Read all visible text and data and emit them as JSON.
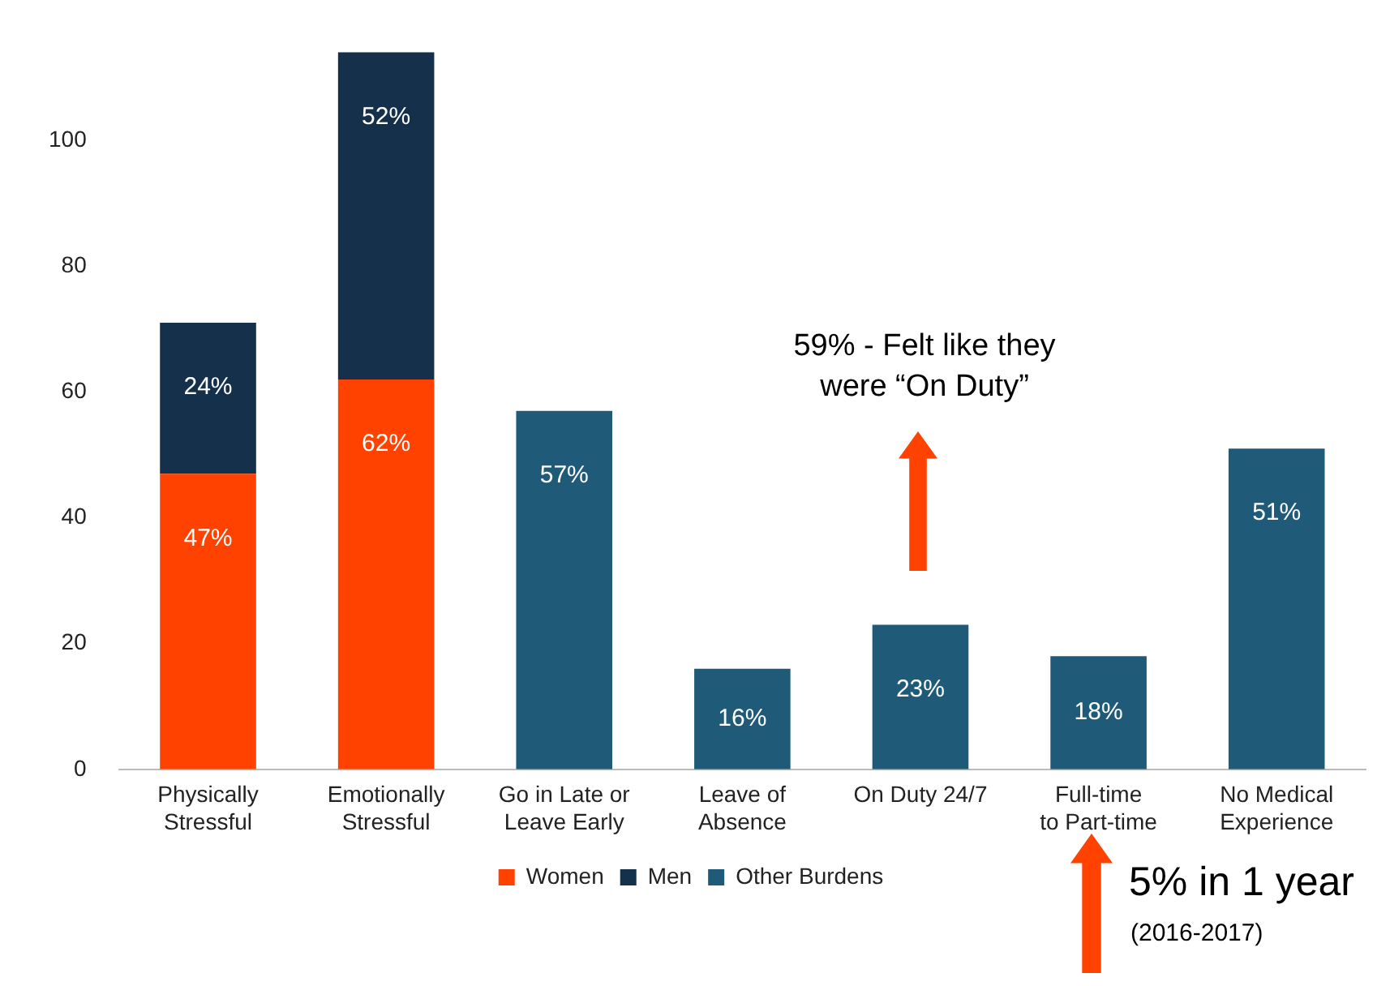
{
  "chart_data": {
    "type": "bar",
    "stacked": true,
    "categories": [
      "Physically\nStressful",
      "Emotionally\nStressful",
      "Go in Late or\nLeave Early",
      "Leave of\nAbsence",
      "On Duty 24/7",
      "Full-time\nto Part-time",
      "No Medical\nExperience"
    ],
    "series": [
      {
        "name": "Women",
        "color": "#ff4200",
        "values": [
          47,
          62,
          null,
          null,
          null,
          null,
          null
        ],
        "value_labels": [
          "47%",
          "62%",
          null,
          null,
          null,
          null,
          null
        ]
      },
      {
        "name": "Men",
        "color": "#15304b",
        "values": [
          24,
          52,
          null,
          null,
          null,
          null,
          null
        ],
        "value_labels": [
          "24%",
          "52%",
          null,
          null,
          null,
          null,
          null
        ]
      },
      {
        "name": "Other Burdens",
        "color": "#1f5b79",
        "values": [
          null,
          null,
          57,
          16,
          23,
          18,
          51
        ],
        "value_labels": [
          null,
          null,
          "57%",
          "16%",
          "23%",
          "18%",
          "51%"
        ]
      }
    ],
    "ylim": [
      0,
      115
    ],
    "yticks": [
      0,
      20,
      40,
      60,
      80,
      100
    ],
    "grid": false,
    "legend": "bottom",
    "annotations": [
      "59% - Felt like they were “On Duty”",
      "5% in 1 year",
      "(2016-2017)"
    ]
  }
}
